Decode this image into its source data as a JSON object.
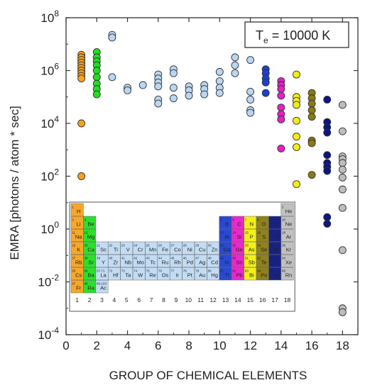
{
  "chart_data": {
    "type": "scatter",
    "xlabel": "GROUP OF CHEMICAL ELEMENTS",
    "ylabel": "EMRA [photons / atom * sec]",
    "xlim": [
      0,
      19
    ],
    "ylim_log10": [
      -4,
      8
    ],
    "y_scale": "log",
    "x_ticks": [
      "0",
      "2",
      "4",
      "6",
      "8",
      "10",
      "12",
      "14",
      "16",
      "18"
    ],
    "y_ticks": [
      {
        "base": "10",
        "exp": "-4"
      },
      {
        "base": "10",
        "exp": "-2"
      },
      {
        "base": "10",
        "exp": "0"
      },
      {
        "base": "10",
        "exp": "2"
      },
      {
        "base": "10",
        "exp": "4"
      },
      {
        "base": "10",
        "exp": "6"
      },
      {
        "base": "10",
        "exp": "8"
      }
    ],
    "annotation": {
      "text_main": "T",
      "text_sub": "e",
      "text_rest": " = 10000 K"
    },
    "group_colors": {
      "1": "#f7a21b",
      "2": "#22dd22",
      "3": "#b9d6f2",
      "4": "#b9d6f2",
      "5": "#b9d6f2",
      "6": "#b9d6f2",
      "7": "#b9d6f2",
      "8": "#b9d6f2",
      "9": "#b9d6f2",
      "10": "#b9d6f2",
      "11": "#b9d6f2",
      "12": "#b9d6f2",
      "13": "#1d3fd1",
      "14": "#e81ec8",
      "15": "#f2ee10",
      "16": "#8a7a12",
      "17": "#0b1680",
      "18": "#bdbdbd"
    },
    "series": [
      {
        "group": 1,
        "log10_values": [
          6.6,
          6.5,
          6.4,
          6.3,
          6.2,
          6.1,
          6.0,
          5.9,
          5.8,
          5.7,
          4.0,
          2.0
        ]
      },
      {
        "group": 2,
        "log10_values": [
          6.7,
          6.5,
          6.35,
          6.2,
          6.0,
          5.75,
          5.5,
          5.3,
          5.1
        ]
      },
      {
        "group": 3,
        "log10_values": [
          7.35,
          7.25,
          5.75
        ]
      },
      {
        "group": 4,
        "log10_values": [
          5.35,
          5.25
        ]
      },
      {
        "group": 5,
        "log10_values": [
          5.45
        ]
      },
      {
        "group": 6,
        "log10_values": [
          5.85,
          5.7,
          5.55,
          5.4,
          4.9,
          4.75
        ]
      },
      {
        "group": 7,
        "log10_values": [
          6.05,
          5.9,
          5.35,
          4.95
        ]
      },
      {
        "group": 8,
        "log10_values": [
          5.4,
          5.25,
          5.05
        ]
      },
      {
        "group": 9,
        "log10_values": [
          5.45,
          5.3,
          5.1
        ]
      },
      {
        "group": 10,
        "log10_values": [
          5.95,
          5.6,
          5.35,
          5.15
        ]
      },
      {
        "group": 11,
        "log10_values": [
          6.5,
          6.2,
          5.9
        ]
      },
      {
        "group": 12,
        "log10_values": [
          6.4,
          5.2,
          4.9,
          4.5,
          4.4
        ]
      },
      {
        "group": 13,
        "log10_values": [
          6.05,
          5.9,
          5.7,
          5.55,
          5.15
        ]
      },
      {
        "group": 14,
        "log10_values": [
          5.6,
          5.45,
          5.3,
          5.05,
          4.6,
          4.35,
          4.15,
          3.05
        ]
      },
      {
        "group": 15,
        "log10_values": [
          5.85,
          5.0,
          4.85,
          4.7,
          4.1,
          3.5,
          3.1,
          1.7
        ]
      },
      {
        "group": 16,
        "log10_values": [
          5.15,
          4.95,
          4.75,
          4.5,
          4.25,
          3.35,
          3.25,
          2.05
        ]
      },
      {
        "group": 17,
        "log10_values": [
          4.9,
          4.05,
          3.85,
          3.65,
          2.8,
          2.5,
          2.35,
          2.2,
          0.45,
          0.2
        ]
      },
      {
        "group": 18,
        "log10_values": [
          4.7,
          3.7,
          2.75,
          2.65,
          2.5,
          2.25,
          1.95,
          1.5,
          0.8,
          -0.8,
          -3.0,
          -3.15
        ]
      }
    ]
  },
  "inset_table": {
    "elements": [
      {
        "sym": "H",
        "z": "1",
        "g": 1,
        "p": 1
      },
      {
        "sym": "He",
        "z": "2",
        "g": 18,
        "p": 1
      },
      {
        "sym": "Li",
        "z": "3",
        "g": 1,
        "p": 2
      },
      {
        "sym": "Be",
        "z": "4",
        "g": 2,
        "p": 2
      },
      {
        "sym": "B",
        "z": "5",
        "g": 13,
        "p": 2
      },
      {
        "sym": "C",
        "z": "6",
        "g": 14,
        "p": 2
      },
      {
        "sym": "N",
        "z": "7",
        "g": 15,
        "p": 2
      },
      {
        "sym": "O",
        "z": "8",
        "g": 16,
        "p": 2
      },
      {
        "sym": "F",
        "z": "9",
        "g": 17,
        "p": 2
      },
      {
        "sym": "Ne",
        "z": "10",
        "g": 18,
        "p": 2
      },
      {
        "sym": "Na",
        "z": "11",
        "g": 1,
        "p": 3
      },
      {
        "sym": "Mg",
        "z": "12",
        "g": 2,
        "p": 3
      },
      {
        "sym": "Al",
        "z": "13",
        "g": 13,
        "p": 3
      },
      {
        "sym": "Si",
        "z": "14",
        "g": 14,
        "p": 3
      },
      {
        "sym": "P",
        "z": "15",
        "g": 15,
        "p": 3
      },
      {
        "sym": "S",
        "z": "16",
        "g": 16,
        "p": 3
      },
      {
        "sym": "Cl",
        "z": "17",
        "g": 17,
        "p": 3
      },
      {
        "sym": "Ar",
        "z": "18",
        "g": 18,
        "p": 3
      },
      {
        "sym": "K",
        "z": "19",
        "g": 1,
        "p": 4
      },
      {
        "sym": "Ca",
        "z": "20",
        "g": 2,
        "p": 4
      },
      {
        "sym": "Sc",
        "z": "21",
        "g": 3,
        "p": 4
      },
      {
        "sym": "Ti",
        "z": "22",
        "g": 4,
        "p": 4
      },
      {
        "sym": "V",
        "z": "23",
        "g": 5,
        "p": 4
      },
      {
        "sym": "Cr",
        "z": "24",
        "g": 6,
        "p": 4
      },
      {
        "sym": "Mn",
        "z": "25",
        "g": 7,
        "p": 4
      },
      {
        "sym": "Fe",
        "z": "26",
        "g": 8,
        "p": 4
      },
      {
        "sym": "Co",
        "z": "27",
        "g": 9,
        "p": 4
      },
      {
        "sym": "Ni",
        "z": "28",
        "g": 10,
        "p": 4
      },
      {
        "sym": "Cu",
        "z": "29",
        "g": 11,
        "p": 4
      },
      {
        "sym": "Zn",
        "z": "30",
        "g": 12,
        "p": 4
      },
      {
        "sym": "Ga",
        "z": "31",
        "g": 13,
        "p": 4
      },
      {
        "sym": "Ge",
        "z": "32",
        "g": 14,
        "p": 4
      },
      {
        "sym": "As",
        "z": "33",
        "g": 15,
        "p": 4
      },
      {
        "sym": "Se",
        "z": "34",
        "g": 16,
        "p": 4
      },
      {
        "sym": "Br",
        "z": "35",
        "g": 17,
        "p": 4
      },
      {
        "sym": "Kr",
        "z": "36",
        "g": 18,
        "p": 4
      },
      {
        "sym": "Rb",
        "z": "37",
        "g": 1,
        "p": 5
      },
      {
        "sym": "Sr",
        "z": "38",
        "g": 2,
        "p": 5
      },
      {
        "sym": "Y",
        "z": "39",
        "g": 3,
        "p": 5
      },
      {
        "sym": "Zr",
        "z": "40",
        "g": 4,
        "p": 5
      },
      {
        "sym": "Nb",
        "z": "41",
        "g": 5,
        "p": 5
      },
      {
        "sym": "Mo",
        "z": "42",
        "g": 6,
        "p": 5
      },
      {
        "sym": "Tc",
        "z": "43",
        "g": 7,
        "p": 5
      },
      {
        "sym": "Ru",
        "z": "44",
        "g": 8,
        "p": 5
      },
      {
        "sym": "Rh",
        "z": "45",
        "g": 9,
        "p": 5
      },
      {
        "sym": "Pd",
        "z": "46",
        "g": 10,
        "p": 5
      },
      {
        "sym": "Ag",
        "z": "47",
        "g": 11,
        "p": 5
      },
      {
        "sym": "Cd",
        "z": "48",
        "g": 12,
        "p": 5
      },
      {
        "sym": "In",
        "z": "49",
        "g": 13,
        "p": 5
      },
      {
        "sym": "Sn",
        "z": "50",
        "g": 14,
        "p": 5
      },
      {
        "sym": "Sb",
        "z": "51",
        "g": 15,
        "p": 5
      },
      {
        "sym": "Te",
        "z": "52",
        "g": 16,
        "p": 5
      },
      {
        "sym": "I",
        "z": "53",
        "g": 17,
        "p": 5
      },
      {
        "sym": "Xe",
        "z": "54",
        "g": 18,
        "p": 5
      },
      {
        "sym": "Cs",
        "z": "55",
        "g": 1,
        "p": 6
      },
      {
        "sym": "Ba",
        "z": "56",
        "g": 2,
        "p": 6
      },
      {
        "sym": "La",
        "z": "57-71",
        "g": 3,
        "p": 6
      },
      {
        "sym": "Hf",
        "z": "72",
        "g": 4,
        "p": 6
      },
      {
        "sym": "Ta",
        "z": "73",
        "g": 5,
        "p": 6
      },
      {
        "sym": "W",
        "z": "74",
        "g": 6,
        "p": 6
      },
      {
        "sym": "Re",
        "z": "75",
        "g": 7,
        "p": 6
      },
      {
        "sym": "Os",
        "z": "76",
        "g": 8,
        "p": 6
      },
      {
        "sym": "Ir",
        "z": "77",
        "g": 9,
        "p": 6
      },
      {
        "sym": "Pt",
        "z": "78",
        "g": 10,
        "p": 6
      },
      {
        "sym": "Au",
        "z": "79",
        "g": 11,
        "p": 6
      },
      {
        "sym": "Hg",
        "z": "80",
        "g": 12,
        "p": 6
      },
      {
        "sym": "Tl",
        "z": "81",
        "g": 13,
        "p": 6
      },
      {
        "sym": "Pb",
        "z": "82",
        "g": 14,
        "p": 6
      },
      {
        "sym": "Bi",
        "z": "83",
        "g": 15,
        "p": 6
      },
      {
        "sym": "Po",
        "z": "84",
        "g": 16,
        "p": 6
      },
      {
        "sym": "At",
        "z": "85",
        "g": 17,
        "p": 6
      },
      {
        "sym": "Rn",
        "z": "86",
        "g": 18,
        "p": 6
      },
      {
        "sym": "Fr",
        "z": "87",
        "g": 1,
        "p": 7
      },
      {
        "sym": "Ra",
        "z": "88",
        "g": 2,
        "p": 7
      },
      {
        "sym": "Ac",
        "z": "89-103",
        "g": 3,
        "p": 7
      }
    ],
    "group_numbers": [
      "1",
      "2",
      "3",
      "4",
      "5",
      "6",
      "7",
      "8",
      "9",
      "10",
      "11",
      "12",
      "13",
      "14",
      "15",
      "16",
      "17",
      "18"
    ]
  }
}
